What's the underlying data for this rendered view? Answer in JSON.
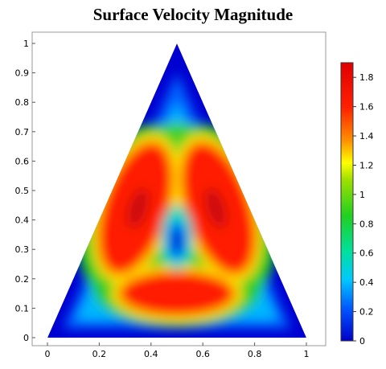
{
  "chart_data": {
    "type": "heatmap",
    "title": "Surface Velocity Magnitude",
    "xlabel": "",
    "ylabel": "",
    "xlim": [
      0,
      1
    ],
    "ylim": [
      0,
      1
    ],
    "x_ticks": [
      "0",
      "0.2",
      "0.4",
      "0.6",
      "0.8",
      "1"
    ],
    "y_ticks": [
      "0",
      "0.1",
      "0.2",
      "0.3",
      "0.4",
      "0.5",
      "0.6",
      "0.7",
      "0.8",
      "0.9",
      "1"
    ],
    "x_tick_values": [
      0,
      0.2,
      0.4,
      0.6,
      0.8,
      1
    ],
    "y_tick_values": [
      0,
      0.1,
      0.2,
      0.3,
      0.4,
      0.5,
      0.6,
      0.7,
      0.8,
      0.9,
      1
    ],
    "domain_shape": "triangle",
    "domain_vertices": [
      [
        0,
        0
      ],
      [
        1,
        0
      ],
      [
        0.5,
        1
      ]
    ],
    "colorbar": {
      "range": [
        0,
        1.9
      ],
      "ticks": [
        "0",
        "0.2",
        "0.4",
        "0.6",
        "0.8",
        "1",
        "1.2",
        "1.4",
        "1.6",
        "1.8"
      ],
      "tick_values": [
        0,
        0.2,
        0.4,
        0.6,
        0.8,
        1.0,
        1.2,
        1.4,
        1.6,
        1.8
      ],
      "colormap": [
        "#0000c8",
        "#0050ff",
        "#00c8ff",
        "#00e0a0",
        "#20d020",
        "#a0e000",
        "#ffff00",
        "#ff9000",
        "#ff2000",
        "#e00000"
      ]
    },
    "grid": false,
    "regions": [
      {
        "name": "left-lobe",
        "center": [
          0.34,
          0.44
        ],
        "value": 1.85
      },
      {
        "name": "right-lobe",
        "center": [
          0.66,
          0.44
        ],
        "value": 1.85
      },
      {
        "name": "bottom-lobe",
        "center": [
          0.5,
          0.15
        ],
        "value": 1.8
      },
      {
        "name": "center-hole",
        "center": [
          0.5,
          0.32
        ],
        "value": 0.3
      }
    ]
  }
}
